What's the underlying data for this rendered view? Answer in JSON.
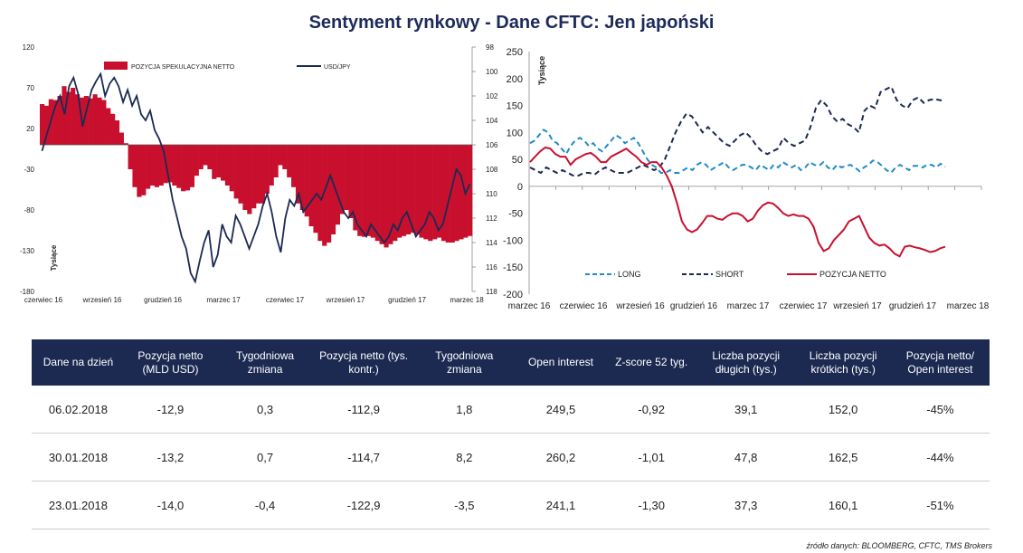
{
  "title": "Sentyment rynkowy - Dane CFTC: Jen japoński",
  "colors": {
    "netto": "#c8102e",
    "usdjpy": "#1c2a52",
    "long": "#1f8bc8",
    "short": "#1c2a52",
    "header_bg": "#1c2a52",
    "title": "#1c2b5a"
  },
  "chart_data": [
    {
      "type": "bar+line",
      "left_axis": {
        "ticks": [
          "120",
          "70",
          "20",
          "-30",
          "-80",
          "-130",
          "-180"
        ],
        "values": [
          120,
          70,
          20,
          -30,
          -80,
          -130,
          -180
        ],
        "label": "Tysiące",
        "range": [
          -180,
          120
        ]
      },
      "right_axis": {
        "ticks": [
          "98",
          "100",
          "102",
          "104",
          "106",
          "108",
          "110",
          "112",
          "114",
          "116",
          "118"
        ],
        "values": [
          98,
          100,
          102,
          104,
          106,
          108,
          110,
          112,
          114,
          116,
          118
        ],
        "range": [
          98,
          118
        ],
        "inverted": true
      },
      "x_ticks": [
        "czerwiec 16",
        "wrzesień 16",
        "grudzień 16",
        "marzec 17",
        "czerwiec 17",
        "wrzesień 17",
        "grudzień 17",
        "marzec 18"
      ],
      "legend": [
        "POZYCJA SPEKULACYJNA NETTO",
        "USD/JPY"
      ],
      "series": [
        {
          "name": "POZYCJA SPEKULACYJNA NETTO",
          "kind": "bar",
          "axis": "left",
          "values": [
            50,
            48,
            56,
            55,
            60,
            72,
            65,
            70,
            62,
            58,
            60,
            57,
            62,
            58,
            55,
            45,
            38,
            30,
            15,
            2,
            -30,
            -52,
            -64,
            -62,
            -54,
            -50,
            -52,
            -50,
            -47,
            -46,
            -50,
            -53,
            -57,
            -56,
            -52,
            -38,
            -30,
            -25,
            -30,
            -42,
            -40,
            -44,
            -50,
            -57,
            -66,
            -72,
            -80,
            -85,
            -78,
            -72,
            -72,
            -60,
            -50,
            -40,
            -25,
            -30,
            -40,
            -52,
            -72,
            -80,
            -88,
            -100,
            -108,
            -118,
            -124,
            -120,
            -110,
            -98,
            -85,
            -80,
            -90,
            -105,
            -112,
            -113,
            -112,
            -114,
            -118,
            -122,
            -126,
            -122,
            -118,
            -114,
            -112,
            -110,
            -108,
            -110,
            -114,
            -116,
            -118,
            -116,
            -114,
            -118,
            -120,
            -120,
            -118,
            -116,
            -114,
            -112
          ]
        },
        {
          "name": "USD/JPY",
          "kind": "line",
          "axis": "right",
          "values": [
            106.5,
            105.2,
            104.0,
            102.8,
            102.0,
            103.5,
            101.2,
            100.5,
            101.8,
            104.5,
            103.0,
            101.5,
            100.8,
            100.2,
            102.0,
            101.0,
            100.5,
            101.2,
            102.5,
            101.5,
            102.8,
            102.0,
            103.5,
            104.0,
            103.2,
            104.8,
            105.5,
            106.5,
            108.5,
            110.5,
            112.0,
            113.5,
            114.5,
            116.5,
            117.2,
            115.5,
            114.0,
            113.0,
            116.0,
            115.0,
            112.5,
            113.5,
            114.0,
            111.8,
            112.5,
            113.5,
            114.5,
            113.5,
            112.5,
            111.0,
            110.0,
            111.5,
            113.5,
            114.8,
            112.0,
            110.5,
            111.0,
            110.0,
            111.5,
            111.0,
            110.5,
            110.0,
            110.5,
            109.5,
            108.5,
            109.5,
            110.5,
            111.5,
            112.0,
            111.5,
            112.5,
            113.0,
            113.5,
            112.5,
            113.0,
            113.5,
            114.0,
            113.5,
            112.5,
            113.0,
            112.0,
            111.5,
            112.5,
            113.5,
            113.0,
            112.5,
            111.5,
            112.0,
            113.0,
            112.5,
            111.0,
            109.5,
            108.0,
            108.5,
            110.0,
            109.2
          ]
        }
      ]
    },
    {
      "type": "line",
      "y_axis": {
        "ticks": [
          "250",
          "200",
          "150",
          "100",
          "50",
          "0",
          "-50",
          "-100",
          "-150",
          "-200"
        ],
        "values": [
          250,
          200,
          150,
          100,
          50,
          0,
          -50,
          -100,
          -150,
          -200
        ],
        "range": [
          -200,
          250
        ],
        "label": "Tysiące"
      },
      "x_ticks": [
        "marzec 16",
        "czerwiec 16",
        "wrzesień 16",
        "grudzień 16",
        "marzec 17",
        "czerwiec 17",
        "wrzesień 17",
        "grudzień 17",
        "marzec 18"
      ],
      "legend": [
        "LONG",
        "SHORT",
        "POZYCJA NETTO"
      ],
      "series": [
        {
          "name": "LONG",
          "style": "dashed",
          "values": [
            80,
            85,
            95,
            105,
            100,
            85,
            80,
            70,
            60,
            75,
            85,
            90,
            85,
            75,
            80,
            70,
            65,
            75,
            85,
            95,
            90,
            80,
            85,
            90,
            80,
            65,
            50,
            40,
            35,
            25,
            25,
            30,
            25,
            25,
            30,
            35,
            30,
            40,
            45,
            40,
            30,
            35,
            40,
            45,
            35,
            30,
            35,
            40,
            40,
            35,
            30,
            40,
            35,
            30,
            40,
            35,
            45,
            40,
            35,
            40,
            30,
            35,
            45,
            40,
            38,
            45,
            35,
            30,
            40,
            35,
            38,
            40,
            35,
            28,
            35,
            40,
            48,
            45,
            38,
            30,
            25,
            35,
            40,
            35,
            30,
            38,
            38,
            35,
            40,
            40,
            35,
            42,
            36
          ]
        },
        {
          "name": "SHORT",
          "style": "dashed",
          "values": [
            35,
            30,
            25,
            35,
            30,
            25,
            30,
            25,
            20,
            20,
            25,
            25,
            22,
            30,
            35,
            30,
            25,
            25,
            25,
            30,
            35,
            40,
            35,
            30,
            35,
            50,
            75,
            100,
            120,
            135,
            130,
            115,
            100,
            110,
            100,
            90,
            80,
            75,
            85,
            95,
            100,
            90,
            75,
            65,
            60,
            65,
            70,
            90,
            80,
            75,
            80,
            85,
            110,
            145,
            160,
            150,
            130,
            120,
            125,
            115,
            110,
            100,
            140,
            150,
            145,
            175,
            180,
            185,
            160,
            150,
            145,
            160,
            165,
            155,
            160,
            162,
            160,
            158
          ]
        },
        {
          "name": "POZYCJA NETTO",
          "style": "solid",
          "values": [
            45,
            55,
            65,
            72,
            70,
            60,
            55,
            55,
            40,
            50,
            55,
            60,
            62,
            55,
            45,
            45,
            55,
            60,
            65,
            70,
            62,
            55,
            45,
            40,
            45,
            45,
            35,
            20,
            0,
            -30,
            -65,
            -80,
            -85,
            -80,
            -68,
            -55,
            -55,
            -60,
            -62,
            -55,
            -50,
            -50,
            -55,
            -65,
            -60,
            -45,
            -35,
            -30,
            -32,
            -40,
            -50,
            -55,
            -52,
            -55,
            -55,
            -60,
            -75,
            -105,
            -120,
            -115,
            -100,
            -90,
            -80,
            -65,
            -60,
            -55,
            -75,
            -95,
            -105,
            -110,
            -108,
            -115,
            -125,
            -130,
            -112,
            -110,
            -113,
            -115,
            -118,
            -122,
            -120,
            -115,
            -112
          ]
        }
      ]
    }
  ],
  "table": {
    "headers": [
      "Dane na dzień",
      "Pozycja netto (MLD USD)",
      "Tygodniowa zmiana",
      "Pozycja netto (tys. kontr.)",
      "Tygodniowa zmiana",
      "Open interest",
      "Z-score 52 tyg.",
      "Liczba pozycji długich (tys.)",
      "Liczba pozycji krótkich (tys.)",
      "Pozycja netto/ Open interest"
    ],
    "rows": [
      [
        "06.02.2018",
        "-12,9",
        "0,3",
        "-112,9",
        "1,8",
        "249,5",
        "-0,92",
        "39,1",
        "152,0",
        "-45%"
      ],
      [
        "30.01.2018",
        "-13,2",
        "0,7",
        "-114,7",
        "8,2",
        "260,2",
        "-1,01",
        "47,8",
        "162,5",
        "-44%"
      ],
      [
        "23.01.2018",
        "-14,0",
        "-0,4",
        "-122,9",
        "-3,5",
        "241,1",
        "-1,30",
        "37,3",
        "160,1",
        "-51%"
      ]
    ]
  },
  "source": "źródło danych: BLOOMBERG, CFTC, TMS Brokers"
}
